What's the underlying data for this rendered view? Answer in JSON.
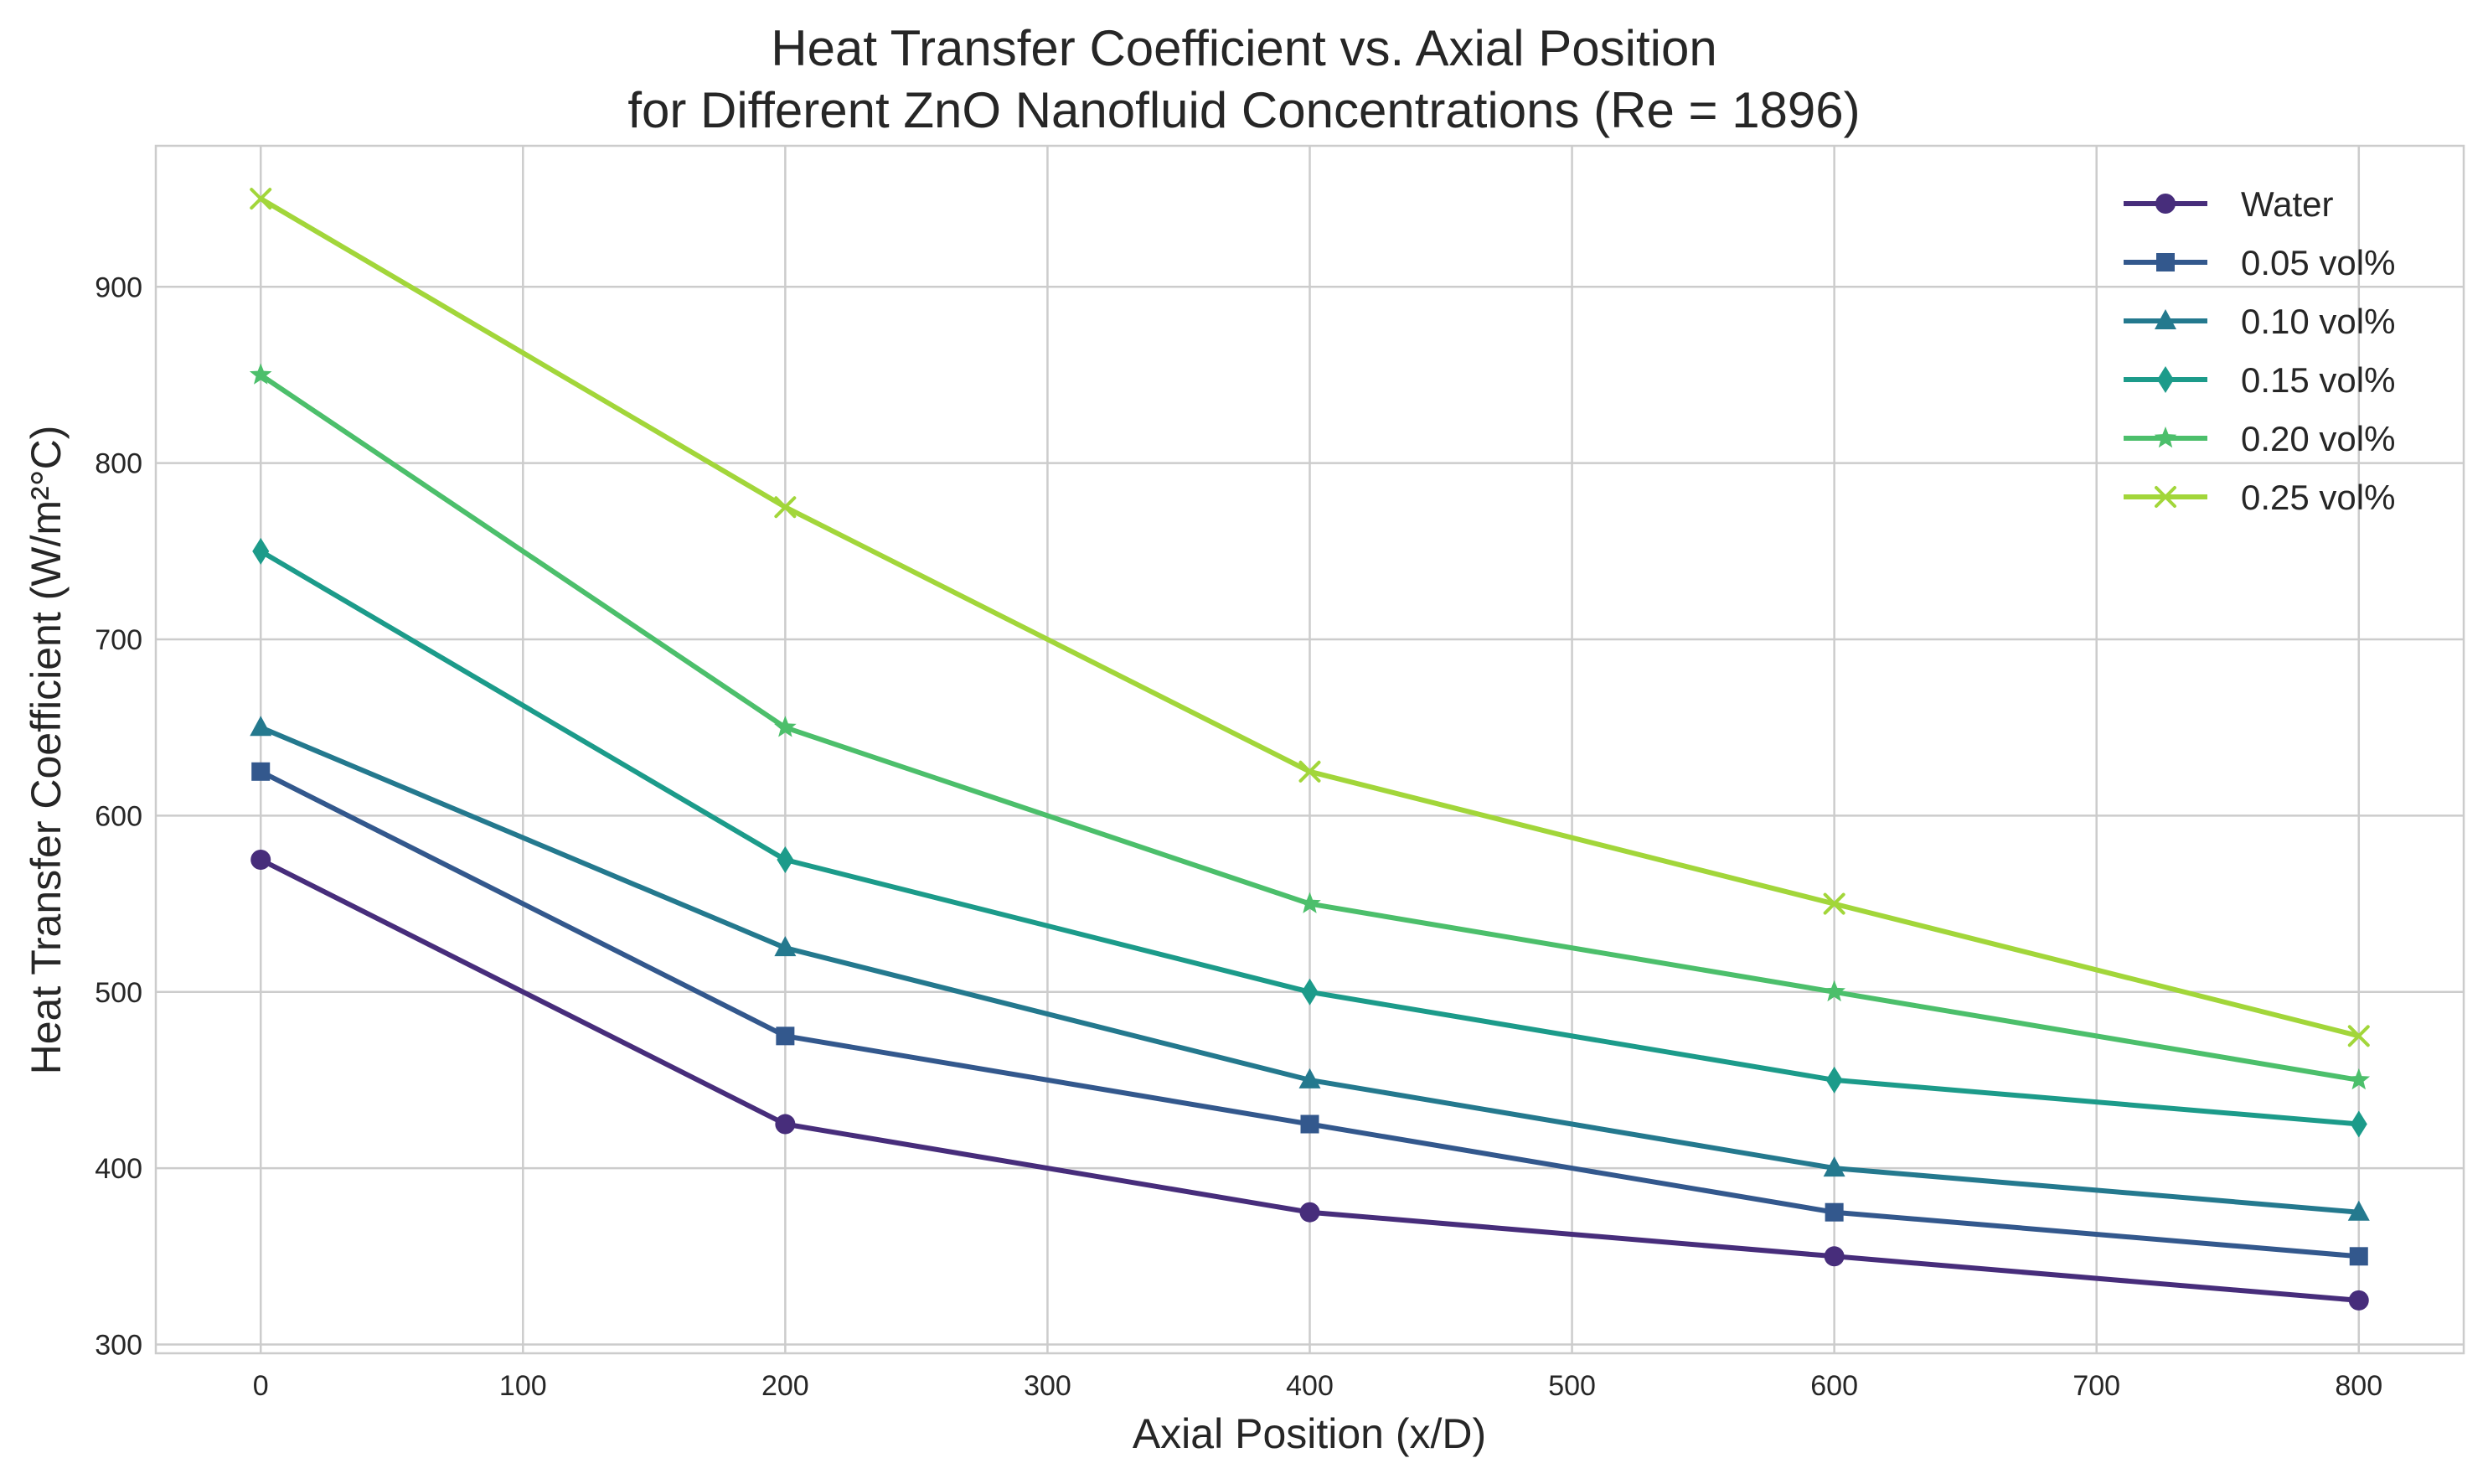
{
  "chart_data": {
    "type": "line",
    "title": [
      "Heat Transfer Coefficient vs. Axial Position",
      "for Different ZnO Nanofluid Concentrations (Re = 1896)"
    ],
    "xlabel": "Axial Position (x/D)",
    "ylabel": "Heat Transfer Coefficient (W/m²°C)",
    "xlim": [
      -40,
      840
    ],
    "ylim": [
      295,
      980
    ],
    "xticks": [
      0,
      100,
      200,
      300,
      400,
      500,
      600,
      700,
      800
    ],
    "yticks": [
      300,
      400,
      500,
      600,
      700,
      800,
      900
    ],
    "grid": true,
    "legend_position": "top-right",
    "x": [
      0,
      200,
      400,
      600,
      800
    ],
    "series": [
      {
        "name": "Water",
        "values": [
          575,
          425,
          375,
          350,
          325
        ],
        "color": "#472d7b",
        "marker": "circle"
      },
      {
        "name": "0.05 vol%",
        "values": [
          625,
          475,
          425,
          375,
          350
        ],
        "color": "#33588d",
        "marker": "square"
      },
      {
        "name": "0.10 vol%",
        "values": [
          650,
          525,
          450,
          400,
          375
        ],
        "color": "#24798e",
        "marker": "triangle"
      },
      {
        "name": "0.15 vol%",
        "values": [
          750,
          575,
          500,
          450,
          425
        ],
        "color": "#1c9b8a",
        "marker": "diamond"
      },
      {
        "name": "0.20 vol%",
        "values": [
          850,
          650,
          550,
          500,
          450
        ],
        "color": "#4cbf6b",
        "marker": "star"
      },
      {
        "name": "0.25 vol%",
        "values": [
          950,
          775,
          625,
          550,
          475
        ],
        "color": "#a2d63a",
        "marker": "x"
      }
    ]
  }
}
